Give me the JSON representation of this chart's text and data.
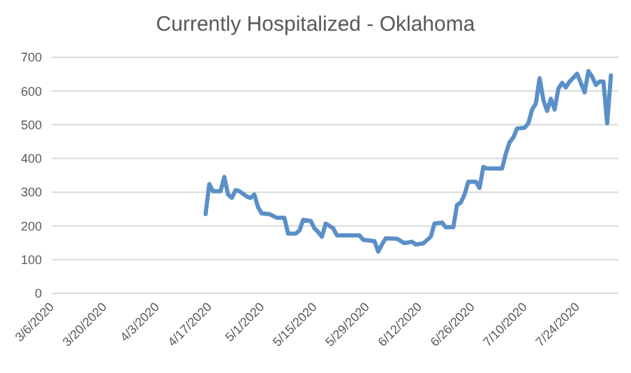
{
  "chart_data": {
    "type": "line",
    "title": "Currently Hospitalized - Oklahoma",
    "xlim": [
      "2020-03-06",
      "2020-08-04"
    ],
    "xticks": [
      {
        "value": "2020-03-06",
        "label": "3/6/2020"
      },
      {
        "value": "2020-03-20",
        "label": "3/20/2020"
      },
      {
        "value": "2020-04-03",
        "label": "4/3/2020"
      },
      {
        "value": "2020-04-17",
        "label": "4/17/2020"
      },
      {
        "value": "2020-05-01",
        "label": "5/1/2020"
      },
      {
        "value": "2020-05-15",
        "label": "5/15/2020"
      },
      {
        "value": "2020-05-29",
        "label": "5/29/2020"
      },
      {
        "value": "2020-06-12",
        "label": "6/12/2020"
      },
      {
        "value": "2020-06-26",
        "label": "6/26/2020"
      },
      {
        "value": "2020-07-10",
        "label": "7/10/2020"
      },
      {
        "value": "2020-07-24",
        "label": "7/24/2020"
      }
    ],
    "ylim": [
      0,
      700
    ],
    "yticks": [
      0,
      100,
      200,
      300,
      400,
      500,
      600,
      700
    ],
    "grid": "y",
    "marker": "none",
    "line_style": "solid",
    "series": [
      {
        "color": "#5b8fc7",
        "x": [
          "2020-04-16",
          "2020-04-17",
          "2020-04-18",
          "2020-04-20",
          "2020-04-21",
          "2020-04-22",
          "2020-04-23",
          "2020-04-24",
          "2020-04-25",
          "2020-04-27",
          "2020-04-28",
          "2020-04-29",
          "2020-04-30",
          "2020-05-01",
          "2020-05-03",
          "2020-05-05",
          "2020-05-07",
          "2020-05-08",
          "2020-05-10",
          "2020-05-11",
          "2020-05-12",
          "2020-05-14",
          "2020-05-15",
          "2020-05-16",
          "2020-05-17",
          "2020-05-18",
          "2020-05-20",
          "2020-05-21",
          "2020-05-27",
          "2020-05-28",
          "2020-05-31",
          "2020-06-01",
          "2020-06-02",
          "2020-06-03",
          "2020-06-06",
          "2020-06-08",
          "2020-06-10",
          "2020-06-11",
          "2020-06-13",
          "2020-06-15",
          "2020-06-16",
          "2020-06-18",
          "2020-06-19",
          "2020-06-21",
          "2020-06-22",
          "2020-06-23",
          "2020-06-24",
          "2020-06-25",
          "2020-06-27",
          "2020-06-28",
          "2020-06-29",
          "2020-06-30",
          "2020-07-04",
          "2020-07-05",
          "2020-07-06",
          "2020-07-07",
          "2020-07-08",
          "2020-07-10",
          "2020-07-11",
          "2020-07-12",
          "2020-07-13",
          "2020-07-14",
          "2020-07-15",
          "2020-07-16",
          "2020-07-17",
          "2020-07-18",
          "2020-07-19",
          "2020-07-20",
          "2020-07-21",
          "2020-07-22",
          "2020-07-24",
          "2020-07-26",
          "2020-07-27",
          "2020-07-28",
          "2020-07-29",
          "2020-07-30",
          "2020-07-31",
          "2020-08-01",
          "2020-08-02"
        ],
        "values": [
          235,
          324,
          303,
          303,
          345,
          293,
          283,
          306,
          303,
          287,
          283,
          293,
          255,
          237,
          235,
          224,
          224,
          177,
          177,
          186,
          218,
          215,
          193,
          182,
          168,
          207,
          193,
          172,
          172,
          159,
          155,
          124,
          145,
          163,
          162,
          149,
          153,
          145,
          148,
          168,
          207,
          210,
          196,
          196,
          262,
          269,
          293,
          331,
          331,
          313,
          375,
          370,
          370,
          414,
          448,
          462,
          489,
          491,
          504,
          545,
          563,
          638,
          573,
          541,
          577,
          545,
          607,
          624,
          611,
          628,
          651,
          596,
          659,
          642,
          618,
          628,
          628,
          504,
          646
        ]
      }
    ]
  }
}
